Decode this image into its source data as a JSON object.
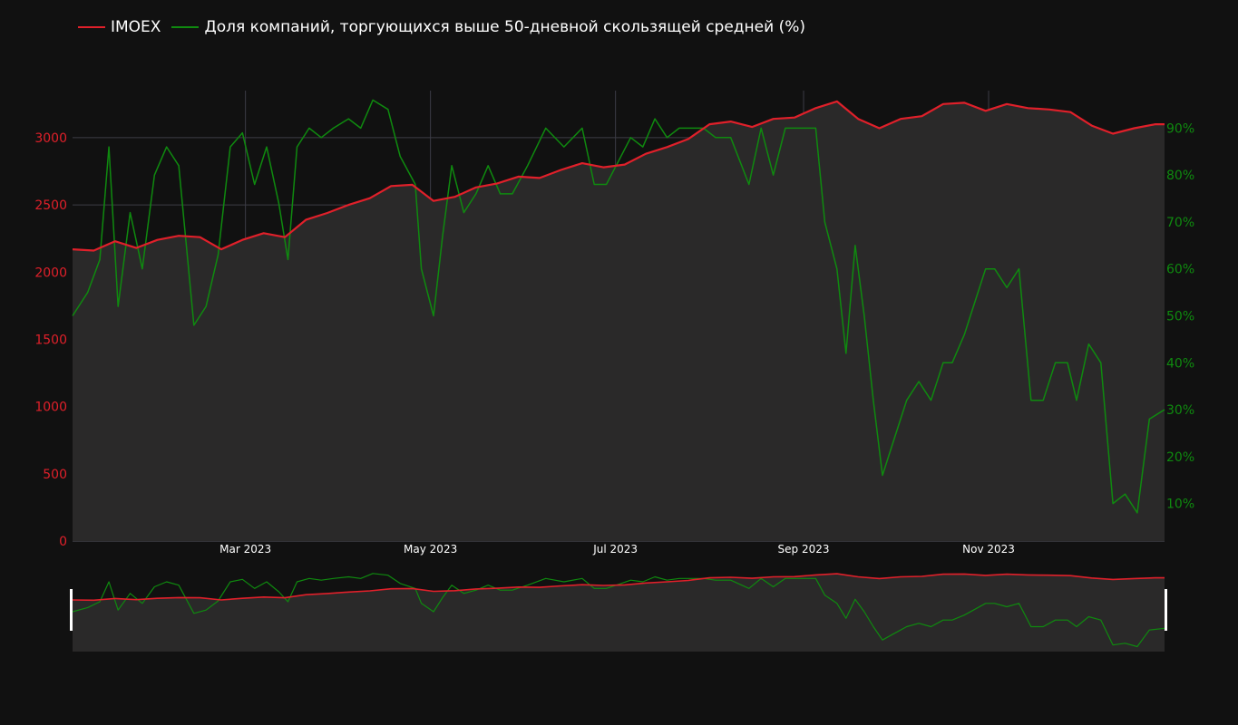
{
  "legend": {
    "items": [
      {
        "label": "IMOEX",
        "color": "#e0202a"
      },
      {
        "label": "Доля компаний, торгующихся выше 50-дневной скользящей средней (%)",
        "color": "#0f8a0f"
      }
    ]
  },
  "colors": {
    "background": "#111111",
    "plot_bg": "#2a2929",
    "grid": "#3c3c46",
    "imoex": "#e0202a",
    "share": "#0f8a0f",
    "x_tick": "#ffffff",
    "y_left_tick": "#e0202a",
    "y_right_tick": "#0f8a0f"
  },
  "chart_data": {
    "type": "line",
    "x_range": [
      "2023-01-03",
      "2023-12-29"
    ],
    "x_ticks": [
      {
        "date": "2023-03-01",
        "label": "Mar 2023"
      },
      {
        "date": "2023-05-01",
        "label": "May 2023"
      },
      {
        "date": "2023-07-01",
        "label": "Jul 2023"
      },
      {
        "date": "2023-09-01",
        "label": "Sep 2023"
      },
      {
        "date": "2023-11-01",
        "label": "Nov 2023"
      }
    ],
    "y_left": {
      "range": [
        0,
        3350
      ],
      "ticks": [
        0,
        500,
        1000,
        1500,
        2000,
        2500,
        3000
      ],
      "tick_labels": [
        "0",
        "500",
        "1000",
        "1500",
        "2000",
        "2500",
        "3000"
      ]
    },
    "y_right": {
      "range": [
        2,
        98
      ],
      "ticks": [
        10,
        20,
        30,
        40,
        50,
        60,
        70,
        80,
        90
      ],
      "tick_labels": [
        "10%",
        "20%",
        "30%",
        "40%",
        "50%",
        "60%",
        "70%",
        "80%",
        "90%"
      ]
    },
    "grid": true,
    "legend_position": "top-left",
    "range_slider": true,
    "series": [
      {
        "name": "IMOEX",
        "axis": "left",
        "fill": "tozeroy",
        "x": [
          "2023-01-03",
          "2023-01-10",
          "2023-01-17",
          "2023-01-24",
          "2023-01-31",
          "2023-02-07",
          "2023-02-14",
          "2023-02-21",
          "2023-02-28",
          "2023-03-07",
          "2023-03-14",
          "2023-03-21",
          "2023-03-28",
          "2023-04-04",
          "2023-04-11",
          "2023-04-18",
          "2023-04-25",
          "2023-05-02",
          "2023-05-09",
          "2023-05-16",
          "2023-05-23",
          "2023-05-30",
          "2023-06-06",
          "2023-06-13",
          "2023-06-20",
          "2023-06-27",
          "2023-07-04",
          "2023-07-11",
          "2023-07-18",
          "2023-07-25",
          "2023-08-01",
          "2023-08-08",
          "2023-08-15",
          "2023-08-22",
          "2023-08-29",
          "2023-09-05",
          "2023-09-12",
          "2023-09-19",
          "2023-09-26",
          "2023-10-03",
          "2023-10-10",
          "2023-10-17",
          "2023-10-24",
          "2023-10-31",
          "2023-11-07",
          "2023-11-14",
          "2023-11-21",
          "2023-11-28",
          "2023-12-05",
          "2023-12-12",
          "2023-12-19",
          "2023-12-26",
          "2023-12-29"
        ],
        "values": [
          2170,
          2160,
          2230,
          2180,
          2240,
          2270,
          2260,
          2170,
          2240,
          2290,
          2260,
          2390,
          2440,
          2500,
          2550,
          2640,
          2650,
          2530,
          2560,
          2630,
          2660,
          2710,
          2700,
          2760,
          2810,
          2780,
          2800,
          2880,
          2930,
          2990,
          3100,
          3120,
          3080,
          3140,
          3150,
          3220,
          3270,
          3140,
          3070,
          3140,
          3160,
          3250,
          3260,
          3200,
          3250,
          3220,
          3210,
          3190,
          3090,
          3030,
          3070,
          3100,
          3100
        ]
      },
      {
        "name": "Доля компаний, торгующихся выше 50-дневной скользящей средней (%)",
        "axis": "right",
        "x": [
          "2023-01-03",
          "2023-01-08",
          "2023-01-12",
          "2023-01-15",
          "2023-01-18",
          "2023-01-22",
          "2023-01-26",
          "2023-01-30",
          "2023-02-03",
          "2023-02-07",
          "2023-02-12",
          "2023-02-16",
          "2023-02-20",
          "2023-02-24",
          "2023-02-28",
          "2023-03-04",
          "2023-03-08",
          "2023-03-12",
          "2023-03-15",
          "2023-03-18",
          "2023-03-22",
          "2023-03-26",
          "2023-03-30",
          "2023-04-04",
          "2023-04-08",
          "2023-04-12",
          "2023-04-17",
          "2023-04-21",
          "2023-04-26",
          "2023-04-28",
          "2023-05-02",
          "2023-05-05",
          "2023-05-08",
          "2023-05-12",
          "2023-05-16",
          "2023-05-20",
          "2023-05-24",
          "2023-05-28",
          "2023-06-02",
          "2023-06-08",
          "2023-06-14",
          "2023-06-20",
          "2023-06-24",
          "2023-06-28",
          "2023-07-02",
          "2023-07-06",
          "2023-07-10",
          "2023-07-14",
          "2023-07-18",
          "2023-07-22",
          "2023-07-26",
          "2023-07-30",
          "2023-08-03",
          "2023-08-08",
          "2023-08-14",
          "2023-08-18",
          "2023-08-22",
          "2023-08-26",
          "2023-08-30",
          "2023-09-05",
          "2023-09-08",
          "2023-09-12",
          "2023-09-15",
          "2023-09-18",
          "2023-09-21",
          "2023-09-24",
          "2023-09-27",
          "2023-10-01",
          "2023-10-05",
          "2023-10-09",
          "2023-10-13",
          "2023-10-17",
          "2023-10-20",
          "2023-10-24",
          "2023-10-27",
          "2023-10-31",
          "2023-11-03",
          "2023-11-07",
          "2023-11-11",
          "2023-11-15",
          "2023-11-19",
          "2023-11-23",
          "2023-11-27",
          "2023-11-30",
          "2023-12-04",
          "2023-12-08",
          "2023-12-12",
          "2023-12-16",
          "2023-12-20",
          "2023-12-24",
          "2023-12-29"
        ],
        "values": [
          50,
          55,
          62,
          86,
          52,
          72,
          60,
          80,
          86,
          82,
          48,
          52,
          63,
          86,
          89,
          78,
          86,
          74,
          62,
          86,
          90,
          88,
          90,
          92,
          90,
          96,
          94,
          84,
          78,
          60,
          50,
          67,
          82,
          72,
          76,
          82,
          76,
          76,
          82,
          90,
          86,
          90,
          78,
          78,
          83,
          88,
          86,
          92,
          88,
          90,
          90,
          90,
          88,
          88,
          78,
          90,
          80,
          90,
          90,
          90,
          70,
          60,
          42,
          65,
          50,
          32,
          16,
          24,
          32,
          36,
          32,
          40,
          40,
          46,
          52,
          60,
          60,
          56,
          60,
          32,
          32,
          40,
          40,
          32,
          44,
          40,
          10,
          12,
          8,
          28,
          30
        ]
      }
    ]
  }
}
